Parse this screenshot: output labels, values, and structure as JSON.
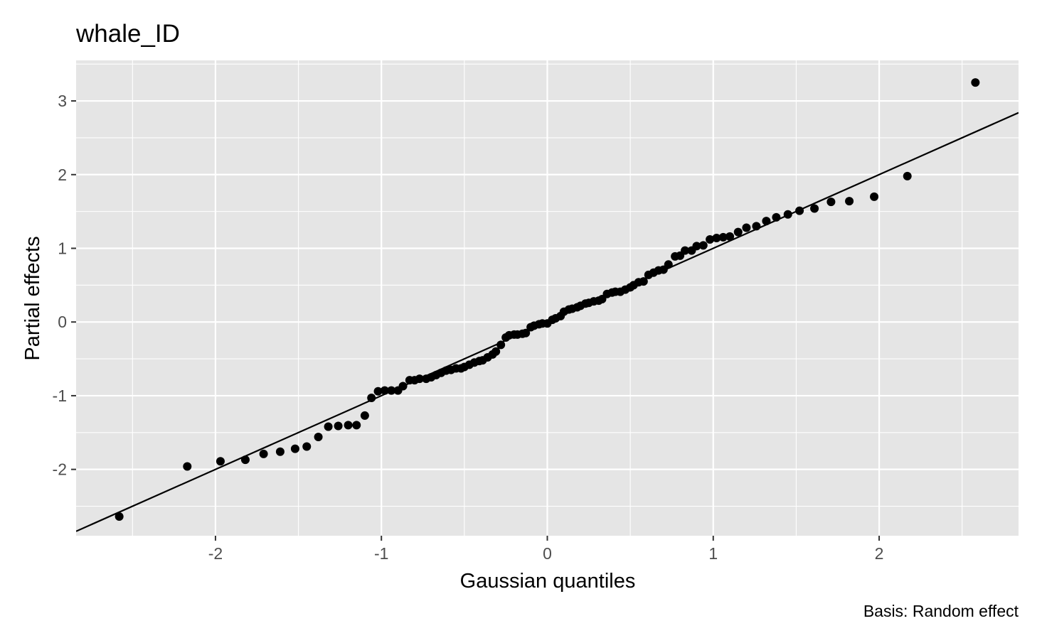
{
  "chart_data": {
    "type": "scatter",
    "title": "whale_ID",
    "xlabel": "Gaussian quantiles",
    "ylabel": "Partial effects",
    "caption": "Basis: Random effect",
    "xlim": [
      -2.84,
      2.84
    ],
    "ylim": [
      -2.9,
      3.55
    ],
    "x_ticks": [
      -2,
      -1,
      0,
      1,
      2
    ],
    "y_ticks": [
      -2,
      -1,
      0,
      1,
      2,
      3
    ],
    "x_tick_labels": [
      "-2",
      "-1",
      "0",
      "1",
      "2"
    ],
    "y_tick_labels": [
      "-2",
      "-1",
      "0",
      "1",
      "2",
      "3"
    ],
    "grid": true,
    "reference_line": {
      "slope": 1.0,
      "intercept": 0.0
    },
    "colors": {
      "panel": "#e5e5e5",
      "grid": "#ffffff",
      "points": "#000000",
      "line": "#000000"
    },
    "points": [
      [
        -2.58,
        -2.64
      ],
      [
        -2.17,
        -1.96
      ],
      [
        -1.97,
        -1.89
      ],
      [
        -1.82,
        -1.87
      ],
      [
        -1.71,
        -1.79
      ],
      [
        -1.61,
        -1.76
      ],
      [
        -1.52,
        -1.72
      ],
      [
        -1.45,
        -1.69
      ],
      [
        -1.38,
        -1.56
      ],
      [
        -1.32,
        -1.42
      ],
      [
        -1.26,
        -1.41
      ],
      [
        -1.2,
        -1.4
      ],
      [
        -1.15,
        -1.4
      ],
      [
        -1.1,
        -1.27
      ],
      [
        -1.06,
        -1.03
      ],
      [
        -1.02,
        -0.94
      ],
      [
        -0.98,
        -0.93
      ],
      [
        -0.94,
        -0.93
      ],
      [
        -0.9,
        -0.93
      ],
      [
        -0.87,
        -0.87
      ],
      [
        -0.83,
        -0.79
      ],
      [
        -0.8,
        -0.79
      ],
      [
        -0.77,
        -0.77
      ],
      [
        -0.73,
        -0.77
      ],
      [
        -0.7,
        -0.75
      ],
      [
        -0.67,
        -0.72
      ],
      [
        -0.64,
        -0.69
      ],
      [
        -0.61,
        -0.66
      ],
      [
        -0.58,
        -0.65
      ],
      [
        -0.55,
        -0.63
      ],
      [
        -0.52,
        -0.63
      ],
      [
        -0.5,
        -0.61
      ],
      [
        -0.47,
        -0.58
      ],
      [
        -0.44,
        -0.55
      ],
      [
        -0.41,
        -0.53
      ],
      [
        -0.39,
        -0.52
      ],
      [
        -0.36,
        -0.48
      ],
      [
        -0.33,
        -0.44
      ],
      [
        -0.31,
        -0.4
      ],
      [
        -0.28,
        -0.31
      ],
      [
        -0.25,
        -0.21
      ],
      [
        -0.23,
        -0.18
      ],
      [
        -0.2,
        -0.17
      ],
      [
        -0.18,
        -0.17
      ],
      [
        -0.15,
        -0.16
      ],
      [
        -0.13,
        -0.15
      ],
      [
        -0.1,
        -0.07
      ],
      [
        -0.08,
        -0.05
      ],
      [
        -0.05,
        -0.03
      ],
      [
        -0.03,
        -0.02
      ],
      [
        0.0,
        -0.02
      ],
      [
        0.03,
        0.03
      ],
      [
        0.05,
        0.05
      ],
      [
        0.08,
        0.08
      ],
      [
        0.1,
        0.14
      ],
      [
        0.13,
        0.17
      ],
      [
        0.15,
        0.18
      ],
      [
        0.18,
        0.2
      ],
      [
        0.2,
        0.22
      ],
      [
        0.23,
        0.25
      ],
      [
        0.25,
        0.26
      ],
      [
        0.28,
        0.28
      ],
      [
        0.31,
        0.29
      ],
      [
        0.33,
        0.31
      ],
      [
        0.36,
        0.38
      ],
      [
        0.39,
        0.4
      ],
      [
        0.41,
        0.41
      ],
      [
        0.44,
        0.41
      ],
      [
        0.47,
        0.44
      ],
      [
        0.5,
        0.47
      ],
      [
        0.52,
        0.5
      ],
      [
        0.55,
        0.54
      ],
      [
        0.58,
        0.55
      ],
      [
        0.61,
        0.64
      ],
      [
        0.64,
        0.67
      ],
      [
        0.67,
        0.7
      ],
      [
        0.7,
        0.71
      ],
      [
        0.73,
        0.78
      ],
      [
        0.77,
        0.89
      ],
      [
        0.8,
        0.9
      ],
      [
        0.83,
        0.97
      ],
      [
        0.87,
        0.97
      ],
      [
        0.9,
        1.03
      ],
      [
        0.94,
        1.04
      ],
      [
        0.98,
        1.12
      ],
      [
        1.02,
        1.14
      ],
      [
        1.06,
        1.15
      ],
      [
        1.1,
        1.16
      ],
      [
        1.15,
        1.22
      ],
      [
        1.2,
        1.28
      ],
      [
        1.26,
        1.3
      ],
      [
        1.32,
        1.37
      ],
      [
        1.38,
        1.42
      ],
      [
        1.45,
        1.46
      ],
      [
        1.52,
        1.51
      ],
      [
        1.61,
        1.54
      ],
      [
        1.71,
        1.63
      ],
      [
        1.82,
        1.64
      ],
      [
        1.97,
        1.7
      ],
      [
        2.17,
        1.98
      ],
      [
        2.58,
        3.25
      ]
    ]
  }
}
